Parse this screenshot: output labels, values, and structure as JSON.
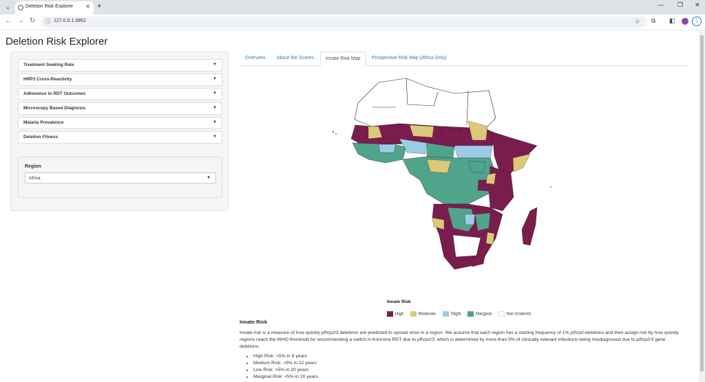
{
  "browser": {
    "tab_title": "Deletion Risk Explorer",
    "url": "127.0.0.1:3952"
  },
  "page": {
    "title": "Deletion Risk Explorer"
  },
  "sidebar": {
    "accordions": [
      {
        "label": "Treatment Seeking Rate"
      },
      {
        "label": "HRP3 Cross-Reactivity"
      },
      {
        "label": "Adherence to RDT Outcomes"
      },
      {
        "label": "Microscopy Based Diagnosis"
      },
      {
        "label": "Malaria Prevalence"
      },
      {
        "label": "Deletion Fitness"
      }
    ],
    "region": {
      "label": "Region",
      "value": "Africa"
    }
  },
  "tabs": [
    {
      "label": "Overview"
    },
    {
      "label": "About the Scores"
    },
    {
      "label": "Innate Risk Map"
    },
    {
      "label": "Prospective Risk Map (Africa Only)"
    }
  ],
  "colors": {
    "high": "#7b1c4e",
    "moderate": "#dcc878",
    "slight": "#9ccbe8",
    "marginal": "#4fa48b",
    "non_endemic": "#ffffff"
  },
  "legend": {
    "title": "Innate Risk",
    "items": [
      {
        "label": "High"
      },
      {
        "label": "Moderate"
      },
      {
        "label": "Slight"
      },
      {
        "label": "Marginal"
      },
      {
        "label": "Non Endemic"
      }
    ]
  },
  "section": {
    "title": "Innate Risk",
    "body_1": "Innate risk is a measure of how quickly ",
    "gene_1": "pfhrp2/3",
    "body_2": " deletions are predicted to spread once in a region. We assume that each region has a starting frequency of 1% ",
    "gene_2": "pfhrp2",
    "body_3": "-deletions and then assign risk by how quickly regions reach the WHO threshold for recommending a switch in front-line RDT due to ",
    "gene_3": "pfhrp2/3",
    "body_4": ", which is determined by more than 5% of clinically relevant infections being misdiagnosed due to ",
    "gene_4": "pfhrp2/3",
    "body_5": " gene deletions.",
    "bullets": [
      {
        "text": "High Risk: >5% in 6 years"
      },
      {
        "text": "Medium Risk: >5% in 12 years"
      },
      {
        "text": "Low Risk: >5% in 20 years"
      },
      {
        "text": "Marginal Risk: <5% in 20 years"
      }
    ]
  }
}
